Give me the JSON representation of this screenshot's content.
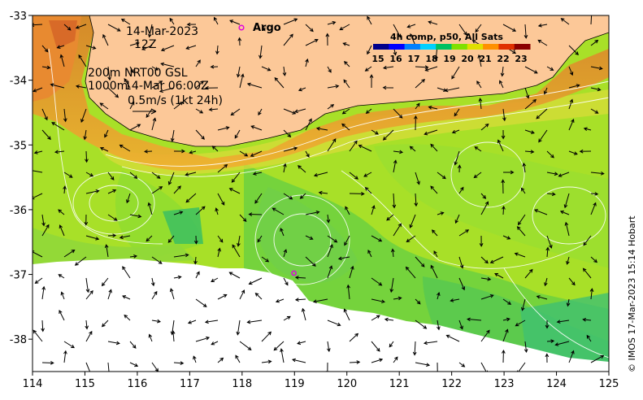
{
  "map": {
    "lon_ticks": [
      "114",
      "115",
      "116",
      "117",
      "118",
      "119",
      "120",
      "121",
      "122",
      "123",
      "124",
      "125"
    ],
    "lat_ticks": [
      "-33",
      "-34",
      "-35",
      "-36",
      "-37",
      "-38"
    ],
    "lon_range": [
      114,
      125
    ],
    "lat_range": [
      -33,
      -38.5
    ]
  },
  "annotations": {
    "date": "14-Mar-2023",
    "time": "12Z",
    "depth_line1": "200m",
    "depth_line2": "1000m",
    "product": "NRT00 GSL",
    "product_time": "14-Mar 06:00Z",
    "scale_arrow": "0.5m/s (1kt 24h)"
  },
  "legend": {
    "argo_label": "Argo",
    "argo_color": "#e000e0"
  },
  "colorbar": {
    "title": "4h comp, p50, All Sats",
    "ticks": [
      "15",
      "16",
      "17",
      "18",
      "19",
      "20",
      "21",
      "22",
      "23"
    ],
    "colors": [
      "#00008b",
      "#0000ff",
      "#0080ff",
      "#00d0ff",
      "#00c060",
      "#80e000",
      "#e0e000",
      "#ff9000",
      "#e03000",
      "#8b0000"
    ]
  },
  "palette": {
    "land": "#fcc898",
    "cloud": "#ffffff",
    "warm_shelf": "#e8a030",
    "mid": "#a8e020",
    "cool": "#50c850",
    "front": "#e0d040"
  },
  "argo_float": {
    "lon": 118.99,
    "lat": -36.98
  },
  "credit": "© IMOS 17-Mar-2023 15:14 Hobart"
}
